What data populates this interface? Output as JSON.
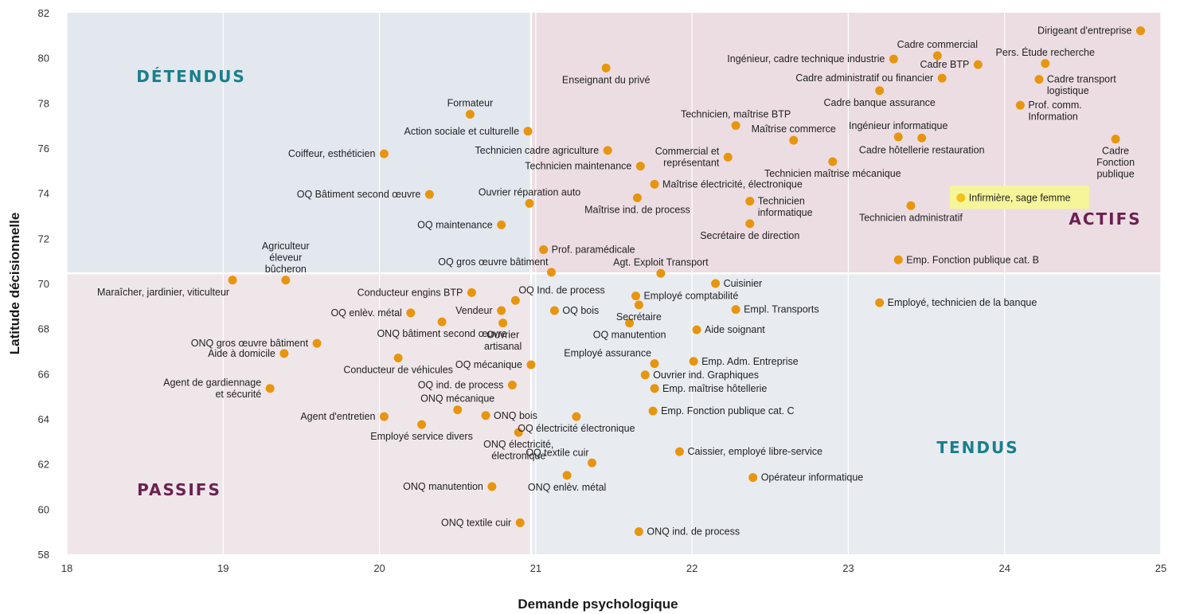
{
  "chart_data": {
    "type": "scatter",
    "xlabel": "Demande psychologique",
    "ylabel": "Latitude décisionnelle",
    "xlim": [
      18,
      25
    ],
    "ylim": [
      58,
      82
    ],
    "x_ticks": [
      "18",
      "19",
      "20",
      "21",
      "22",
      "23",
      "24",
      "25"
    ],
    "y_ticks": [
      "58",
      "60",
      "62",
      "64",
      "66",
      "68",
      "70",
      "72",
      "74",
      "76",
      "78",
      "80",
      "82"
    ],
    "grid": "vertical",
    "divider": {
      "x": 20.97,
      "y": 70.45
    },
    "quadrants": [
      {
        "name": "DÉTENDUS",
        "region": "top-left",
        "color": "#1a7f8c"
      },
      {
        "name": "ACTIFS",
        "region": "top-right",
        "color": "#6b2150"
      },
      {
        "name": "PASSIFS",
        "region": "bottom-left",
        "color": "#6b2150"
      },
      {
        "name": "TENDUS",
        "region": "bottom-right",
        "color": "#1a7f8c"
      }
    ],
    "colors": {
      "point": "#e8950e",
      "highlight_point": "#f2c21c",
      "highlight_box": "#f7f59a",
      "bg_top_left": "#e3e8ef",
      "bg_top_right": "#ecdde3",
      "bg_bottom_left": "#efe6ea",
      "bg_bottom_right": "#e8ecf1"
    },
    "points": [
      {
        "label": "Dirigeant d'entreprise",
        "x": 24.87,
        "y": 81.2,
        "anchor": "left"
      },
      {
        "label": "Cadre commercial",
        "x": 23.57,
        "y": 80.1,
        "anchor": "above"
      },
      {
        "label": "Ingénieur, cadre technique industrie",
        "x": 23.29,
        "y": 79.95,
        "anchor": "left"
      },
      {
        "label": "Cadre BTP",
        "x": 23.83,
        "y": 79.7,
        "anchor": "left"
      },
      {
        "label": "Pers. Étude recherche",
        "x": 24.26,
        "y": 79.75,
        "anchor": "above"
      },
      {
        "label": "Enseignant du privé",
        "x": 21.45,
        "y": 79.55,
        "anchor": "below"
      },
      {
        "label": "Cadre administratif ou financier",
        "x": 23.6,
        "y": 79.1,
        "anchor": "left"
      },
      {
        "label": "Cadre transport logistique",
        "x": 24.22,
        "y": 79.05,
        "anchor": "right"
      },
      {
        "label": "Cadre banque assurance",
        "x": 23.2,
        "y": 78.55,
        "anchor": "below"
      },
      {
        "label": "Formateur",
        "x": 20.58,
        "y": 77.5,
        "anchor": "above"
      },
      {
        "label": "Prof. comm. Information",
        "x": 24.1,
        "y": 77.9,
        "anchor": "right"
      },
      {
        "label": "Technicien, maîtrise BTP",
        "x": 22.28,
        "y": 77.0,
        "anchor": "above"
      },
      {
        "label": "Action sociale et culturelle",
        "x": 20.95,
        "y": 76.75,
        "anchor": "left"
      },
      {
        "label": "Ingénieur informatique",
        "x": 23.32,
        "y": 76.5,
        "anchor": "above"
      },
      {
        "label": "Maîtrise commerce",
        "x": 22.65,
        "y": 76.35,
        "anchor": "above"
      },
      {
        "label": "Cadre hôtellerie restauration",
        "x": 23.47,
        "y": 76.45,
        "anchor": "below"
      },
      {
        "label": "Cadre Fonction publique",
        "x": 24.71,
        "y": 76.4,
        "anchor": "below"
      },
      {
        "label": "Technicien cadre agriculture",
        "x": 21.46,
        "y": 75.9,
        "anchor": "left"
      },
      {
        "label": "Coiffeur, esthéticien",
        "x": 20.03,
        "y": 75.75,
        "anchor": "left"
      },
      {
        "label": "Commercial et représentant",
        "x": 22.23,
        "y": 75.6,
        "anchor": "left"
      },
      {
        "label": "Technicien maintenance",
        "x": 21.67,
        "y": 75.2,
        "anchor": "left"
      },
      {
        "label": "Technicien maîtrise mécanique",
        "x": 22.9,
        "y": 75.4,
        "anchor": "below"
      },
      {
        "label": "Maîtrise électricité, électronique",
        "x": 21.76,
        "y": 74.4,
        "anchor": "right"
      },
      {
        "label": "OQ Bâtiment second œuvre",
        "x": 20.32,
        "y": 73.95,
        "anchor": "left"
      },
      {
        "label": "Ouvrier réparation auto",
        "x": 20.96,
        "y": 73.55,
        "anchor": "above"
      },
      {
        "label": "Maîtrise ind. de process",
        "x": 21.65,
        "y": 73.8,
        "anchor": "below"
      },
      {
        "label": "Technicien informatique",
        "x": 22.37,
        "y": 73.65,
        "anchor": "right"
      },
      {
        "label": "Infirmière, sage femme",
        "x": 23.72,
        "y": 73.8,
        "anchor": "right",
        "highlight": true
      },
      {
        "label": "Technicien administratif",
        "x": 23.4,
        "y": 73.45,
        "anchor": "below"
      },
      {
        "label": "OQ maintenance",
        "x": 20.78,
        "y": 72.6,
        "anchor": "left"
      },
      {
        "label": "Secrétaire de direction",
        "x": 22.37,
        "y": 72.65,
        "anchor": "below"
      },
      {
        "label": "Prof. paramédicale",
        "x": 21.05,
        "y": 71.5,
        "anchor": "right"
      },
      {
        "label": "Agriculteur éleveur bûcheron",
        "x": 19.4,
        "y": 70.15,
        "anchor": "above"
      },
      {
        "label": "OQ gros œuvre bâtiment",
        "x": 21.1,
        "y": 70.5,
        "anchor": "above-left"
      },
      {
        "label": "Agt. Exploit Transport",
        "x": 21.8,
        "y": 70.45,
        "anchor": "above"
      },
      {
        "label": "Emp. Fonction publique cat. B",
        "x": 23.32,
        "y": 71.05,
        "anchor": "right"
      },
      {
        "label": "Maraîcher, jardinier, viticulteur",
        "x": 19.06,
        "y": 70.15,
        "anchor": "below-left"
      },
      {
        "label": "Cuisinier",
        "x": 22.15,
        "y": 70.0,
        "anchor": "right"
      },
      {
        "label": "Conducteur engins BTP",
        "x": 20.59,
        "y": 69.6,
        "anchor": "left"
      },
      {
        "label": "OQ Ind. de process",
        "x": 20.87,
        "y": 69.25,
        "anchor": "above-right"
      },
      {
        "label": "Employé comptabilité",
        "x": 21.64,
        "y": 69.45,
        "anchor": "right"
      },
      {
        "label": "Employé, technicien de la banque",
        "x": 23.2,
        "y": 69.15,
        "anchor": "right"
      },
      {
        "label": "Secrétaire",
        "x": 21.66,
        "y": 69.05,
        "anchor": "below"
      },
      {
        "label": "OQ enlèv. métal",
        "x": 20.2,
        "y": 68.7,
        "anchor": "left"
      },
      {
        "label": "Vendeur",
        "x": 20.78,
        "y": 68.8,
        "anchor": "left"
      },
      {
        "label": "OQ bois",
        "x": 21.12,
        "y": 68.8,
        "anchor": "right"
      },
      {
        "label": "Empl. Transports",
        "x": 22.28,
        "y": 68.85,
        "anchor": "right"
      },
      {
        "label": "ONQ bâtiment second œuvre",
        "x": 20.4,
        "y": 68.3,
        "anchor": "below"
      },
      {
        "label": "Ouvrier artisanal",
        "x": 20.79,
        "y": 68.25,
        "anchor": "below"
      },
      {
        "label": "OQ manutention",
        "x": 21.6,
        "y": 68.25,
        "anchor": "below"
      },
      {
        "label": "Aide soignant",
        "x": 22.03,
        "y": 67.95,
        "anchor": "right"
      },
      {
        "label": "ONQ gros œuvre bâtiment",
        "x": 19.6,
        "y": 67.35,
        "anchor": "left"
      },
      {
        "label": "Aide à domicile",
        "x": 19.39,
        "y": 66.9,
        "anchor": "left"
      },
      {
        "label": "Conducteur de véhicules",
        "x": 20.12,
        "y": 66.7,
        "anchor": "below"
      },
      {
        "label": "Employé assurance",
        "x": 21.76,
        "y": 66.45,
        "anchor": "above-left"
      },
      {
        "label": "Emp. Adm. Entreprise",
        "x": 22.01,
        "y": 66.55,
        "anchor": "right"
      },
      {
        "label": "OQ mécanique",
        "x": 20.97,
        "y": 66.4,
        "anchor": "left"
      },
      {
        "label": "Ouvrier ind. Graphiques",
        "x": 21.7,
        "y": 65.95,
        "anchor": "right"
      },
      {
        "label": "Agent de gardiennage et sécurité",
        "x": 19.3,
        "y": 65.35,
        "anchor": "left"
      },
      {
        "label": "OQ ind. de process",
        "x": 20.85,
        "y": 65.5,
        "anchor": "left"
      },
      {
        "label": "Emp. maîtrise hôtellerie",
        "x": 21.76,
        "y": 65.35,
        "anchor": "right"
      },
      {
        "label": "ONQ mécanique",
        "x": 20.5,
        "y": 64.4,
        "anchor": "above"
      },
      {
        "label": "Emp. Fonction publique cat. C",
        "x": 21.75,
        "y": 64.35,
        "anchor": "right"
      },
      {
        "label": "Agent d'entretien",
        "x": 20.03,
        "y": 64.1,
        "anchor": "left"
      },
      {
        "label": "ONQ bois",
        "x": 20.68,
        "y": 64.15,
        "anchor": "right"
      },
      {
        "label": "OQ électricité électronique",
        "x": 21.26,
        "y": 64.1,
        "anchor": "below"
      },
      {
        "label": "Employé service divers",
        "x": 20.27,
        "y": 63.75,
        "anchor": "below"
      },
      {
        "label": "ONQ électricité, électronique",
        "x": 20.89,
        "y": 63.4,
        "anchor": "below"
      },
      {
        "label": "Caissier, employé libre-service",
        "x": 21.92,
        "y": 62.55,
        "anchor": "right"
      },
      {
        "label": "OQ textile cuir",
        "x": 21.36,
        "y": 62.05,
        "anchor": "above-left"
      },
      {
        "label": "Opérateur informatique",
        "x": 22.39,
        "y": 61.4,
        "anchor": "right"
      },
      {
        "label": "ONQ manutention",
        "x": 20.72,
        "y": 61.0,
        "anchor": "left"
      },
      {
        "label": "ONQ enlèv. métal",
        "x": 21.2,
        "y": 61.5,
        "anchor": "below"
      },
      {
        "label": "ONQ textile cuir",
        "x": 20.9,
        "y": 59.4,
        "anchor": "left"
      },
      {
        "label": "ONQ ind. de process",
        "x": 21.66,
        "y": 59.0,
        "anchor": "right"
      }
    ]
  }
}
